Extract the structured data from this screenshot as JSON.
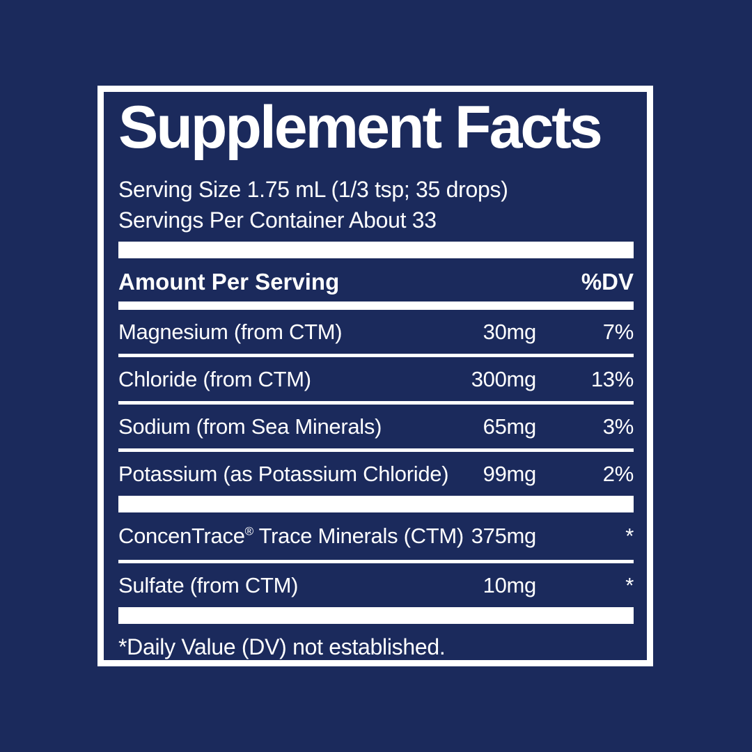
{
  "colors": {
    "background": "#1b2a5c",
    "frame_border": "#ffffff",
    "text": "#ffffff",
    "separator": "#ffffff"
  },
  "label": {
    "title": "Supplement Facts",
    "serving_size": "Serving Size 1.75 mL (1/3 tsp; 35 drops)",
    "servings_per_container": "Servings Per Container About 33",
    "header": {
      "amount_per_serving": "Amount Per Serving",
      "dv": "%DV"
    },
    "rows": [
      {
        "name_pre": "Magnesium (from CTM)",
        "reg": "",
        "name_post": "",
        "amount": "30mg",
        "dv": "7%"
      },
      {
        "name_pre": "Chloride (from CTM)",
        "reg": "",
        "name_post": "",
        "amount": "300mg",
        "dv": "13%"
      },
      {
        "name_pre": "Sodium (from Sea Minerals)",
        "reg": "",
        "name_post": "",
        "amount": "65mg",
        "dv": "3%"
      },
      {
        "name_pre": "Potassium (as Potassium Chloride)",
        "reg": "",
        "name_post": "",
        "amount": "99mg",
        "dv": "2%"
      },
      {
        "name_pre": "ConcenTrace",
        "reg": "®",
        "name_post": " Trace Minerals (CTM)",
        "amount": "375mg",
        "dv": "*"
      },
      {
        "name_pre": "Sulfate (from CTM)",
        "reg": "",
        "name_post": "",
        "amount": "10mg",
        "dv": "*"
      }
    ],
    "footnote": "*Daily Value (DV) not established."
  }
}
